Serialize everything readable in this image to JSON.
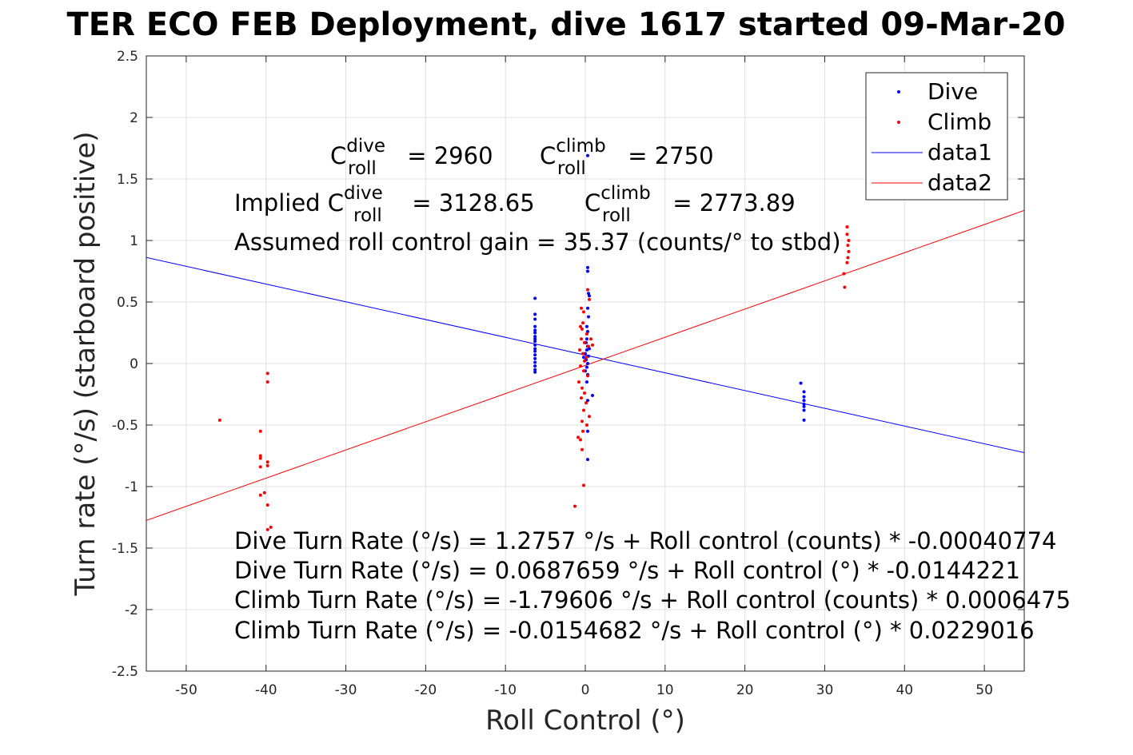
{
  "chart_data": {
    "type": "scatter",
    "title": "TER ECO FEB Deployment, dive 1617 started 09-Mar-20",
    "xlabel": "Roll Control (°)",
    "ylabel": "Turn rate (°/s) (starboard positive)",
    "xlim": [
      -55,
      55
    ],
    "ylim": [
      -2.5,
      2.5
    ],
    "xticks": [
      "-50",
      "-40",
      "-30",
      "-20",
      "-10",
      "0",
      "10",
      "20",
      "30",
      "40",
      "50"
    ],
    "yticks": [
      "2.5",
      "2",
      "1.5",
      "1",
      "0.5",
      "0",
      "-0.5",
      "-1",
      "-1.5",
      "-2",
      "-2.5"
    ],
    "grid": true,
    "legend_position": "top-right",
    "legend": [
      "Dive",
      "Climb",
      "data1",
      "data2"
    ],
    "series": [
      {
        "name": "Dive",
        "color": "#0000ff",
        "points": [
          [
            -6.3,
            0.53
          ],
          [
            -6.3,
            0.4
          ],
          [
            -6.3,
            0.36
          ],
          [
            -6.3,
            0.3
          ],
          [
            -6.3,
            0.27
          ],
          [
            -6.3,
            0.25
          ],
          [
            -6.3,
            0.22
          ],
          [
            -6.3,
            0.2
          ],
          [
            -6.3,
            0.18
          ],
          [
            -6.3,
            0.15
          ],
          [
            -6.3,
            0.12
          ],
          [
            -6.3,
            0.1
          ],
          [
            -6.3,
            0.07
          ],
          [
            -6.3,
            0.04
          ],
          [
            -6.3,
            0.01
          ],
          [
            -6.3,
            -0.02
          ],
          [
            -6.3,
            -0.05
          ],
          [
            -6.3,
            -0.07
          ],
          [
            0.3,
            1.69
          ],
          [
            0.3,
            0.78
          ],
          [
            0.3,
            0.75
          ],
          [
            0.4,
            0.57
          ],
          [
            0.5,
            0.55
          ],
          [
            0.3,
            0.45
          ],
          [
            0.4,
            0.38
          ],
          [
            0.2,
            0.3
          ],
          [
            0.3,
            0.26
          ],
          [
            0.2,
            0.2
          ],
          [
            0.1,
            0.17
          ],
          [
            0.3,
            0.14
          ],
          [
            0.2,
            0.11
          ],
          [
            0.0,
            0.08
          ],
          [
            0.4,
            0.06
          ],
          [
            0.1,
            0.03
          ],
          [
            0.3,
            0.0
          ],
          [
            0.2,
            -0.03
          ],
          [
            0.0,
            -0.06
          ],
          [
            0.3,
            -0.09
          ],
          [
            0.2,
            -0.15
          ],
          [
            0.3,
            -0.3
          ],
          [
            0.3,
            -0.55
          ],
          [
            0.3,
            -0.78
          ],
          [
            0.9,
            -0.26
          ],
          [
            0.5,
            0.12
          ],
          [
            -0.2,
            0.05
          ],
          [
            27.0,
            -0.16
          ],
          [
            27.4,
            -0.23
          ],
          [
            27.4,
            -0.27
          ],
          [
            27.4,
            -0.3
          ],
          [
            27.4,
            -0.33
          ],
          [
            27.4,
            -0.35
          ],
          [
            27.4,
            -0.38
          ],
          [
            27.4,
            -0.46
          ]
        ]
      },
      {
        "name": "Climb",
        "color": "#ff0000",
        "points": [
          [
            -45.8,
            -0.46
          ],
          [
            -40.7,
            -0.55
          ],
          [
            -40.7,
            -0.75
          ],
          [
            -40.7,
            -0.77
          ],
          [
            -40.7,
            -0.84
          ],
          [
            -40.7,
            -1.07
          ],
          [
            -40.2,
            -1.05
          ],
          [
            -39.8,
            -0.08
          ],
          [
            -39.8,
            -0.15
          ],
          [
            -39.8,
            -0.8
          ],
          [
            -39.8,
            -0.83
          ],
          [
            -39.8,
            -1.15
          ],
          [
            -39.8,
            -1.35
          ],
          [
            -39.4,
            -1.33
          ],
          [
            -1.3,
            -1.16
          ],
          [
            -0.2,
            -0.99
          ],
          [
            -0.4,
            -0.7
          ],
          [
            -0.6,
            -0.62
          ],
          [
            -0.9,
            -0.6
          ],
          [
            -0.3,
            -0.55
          ],
          [
            0.2,
            -0.5
          ],
          [
            -0.4,
            -0.47
          ],
          [
            0.5,
            -0.43
          ],
          [
            -0.2,
            -0.38
          ],
          [
            0.1,
            -0.32
          ],
          [
            -0.5,
            -0.28
          ],
          [
            -0.1,
            -0.24
          ],
          [
            -0.4,
            -0.2
          ],
          [
            -0.8,
            -0.15
          ],
          [
            0.3,
            -0.1
          ],
          [
            -0.2,
            -0.06
          ],
          [
            -0.6,
            -0.02
          ],
          [
            -0.1,
            0.02
          ],
          [
            0.1,
            0.05
          ],
          [
            -0.3,
            0.08
          ],
          [
            -0.7,
            0.11
          ],
          [
            0.4,
            0.14
          ],
          [
            -0.1,
            0.17
          ],
          [
            -0.5,
            0.2
          ],
          [
            0.2,
            0.24
          ],
          [
            -0.4,
            0.28
          ],
          [
            0.7,
            0.2
          ],
          [
            0.9,
            0.15
          ],
          [
            -0.3,
            0.33
          ],
          [
            0.5,
            0.52
          ],
          [
            -0.2,
            0.42
          ],
          [
            -0.5,
            0.45
          ],
          [
            0.3,
            0.6
          ],
          [
            -0.6,
            0.3
          ],
          [
            32.5,
            0.62
          ],
          [
            32.4,
            0.73
          ],
          [
            32.8,
            0.82
          ],
          [
            32.9,
            0.86
          ],
          [
            33.0,
            0.91
          ],
          [
            32.9,
            0.96
          ],
          [
            33.0,
            1.0
          ],
          [
            32.8,
            1.05
          ],
          [
            32.8,
            1.11
          ]
        ]
      }
    ],
    "lines": [
      {
        "name": "data1",
        "color": "#0000ff",
        "x": [
          -55,
          55
        ],
        "y": [
          0.862,
          -0.7245
        ]
      },
      {
        "name": "data2",
        "color": "#ff0000",
        "x": [
          -55,
          55
        ],
        "y": [
          -1.2751,
          1.2442
        ]
      }
    ]
  },
  "annotations": {
    "c_roll_dive_prefix": "C",
    "c_roll_dive_sup": "dive",
    "c_roll_dive_sub": "roll",
    "c_roll_dive_value": " = 2960",
    "c_roll_climb_prefix": "C",
    "c_roll_climb_sup": "climb",
    "c_roll_climb_sub": "roll",
    "c_roll_climb_value": " = 2750",
    "implied_dive_prefix": "Implied C",
    "implied_dive_sup": "dive",
    "implied_dive_sub": "roll",
    "implied_dive_value": " = 3128.65",
    "implied_climb_prefix": "C",
    "implied_climb_sup": "climb",
    "implied_climb_sub": "roll",
    "implied_climb_value": " = 2773.89",
    "gain": "Assumed roll control gain = 35.37 (counts/° to stbd)",
    "fit1": "Dive Turn Rate (°/s) = 1.2757 °/s + Roll control (counts) * -0.00040774",
    "fit2": "Dive Turn Rate (°/s) = 0.0687659 °/s + Roll control (°) * -0.0144221",
    "fit3": "Climb Turn Rate (°/s) = -1.79606 °/s + Roll control (counts) * 0.0006475",
    "fit4": "Climb Turn Rate (°/s) = -0.0154682 °/s + Roll control (°) * 0.0229016"
  }
}
